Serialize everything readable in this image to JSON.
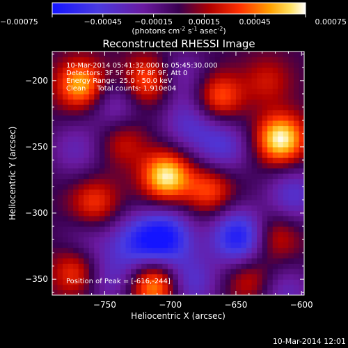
{
  "colorbar": {
    "ticks": [
      "-0.00075",
      "-0.00045",
      "-0.00015",
      "0.00015",
      "0.00045",
      "0.00075"
    ],
    "unit_main": "(photons cm",
    "unit_exp1": "-2",
    "unit_mid": " s",
    "unit_exp2": "-1",
    "unit_tail": " asec",
    "unit_exp3": "-2",
    "unit_close": ")"
  },
  "annotations": {
    "time_range": "10-Mar-2014 05:41:32.000 to 05:45:30.000",
    "detectors": "Detectors: 3F 5F 6F 7F 8F 9F, Att 0",
    "energy": "Energy Range: 25.0 - 50.0 keV",
    "clean": "Clean     Total counts: 1.910e04",
    "peak": "Position of Peak = [-616,-244]"
  },
  "footer_timestamp": "10-Mar-2014 12:01",
  "chart_data": {
    "type": "heatmap",
    "title": "Reconstructed RHESSI Image",
    "xlabel": "Heliocentric X (arcsec)",
    "ylabel": "Heliocentric Y (arcsec)",
    "xlim": [
      -790,
      -598
    ],
    "ylim": [
      -362,
      -178
    ],
    "xticks": [
      -750,
      -700,
      -650,
      -600
    ],
    "yticks": [
      -200,
      -250,
      -300,
      -350
    ],
    "xtick_labels": [
      "−750",
      "−700",
      "−650",
      "−600"
    ],
    "ytick_labels": [
      "−200",
      "−250",
      "−300",
      "−350"
    ],
    "colorscale": "rainbow-blue-to-white",
    "color_range": [
      -0.00075,
      0.00075
    ],
    "peak": {
      "x": -616,
      "y": -244
    },
    "sources": [
      {
        "x": -616,
        "y": -244,
        "value": 0.00075
      },
      {
        "x": -703,
        "y": -272,
        "value": 0.00072
      },
      {
        "x": -768,
        "y": -203,
        "value": 0.0006
      },
      {
        "x": -718,
        "y": -200,
        "value": 0.00045
      },
      {
        "x": -663,
        "y": -212,
        "value": 0.00045
      },
      {
        "x": -712,
        "y": -354,
        "value": 0.0006
      },
      {
        "x": -758,
        "y": -292,
        "value": 0.00036
      },
      {
        "x": -670,
        "y": -282,
        "value": 0.0004
      },
      {
        "x": -620,
        "y": -318,
        "value": 0.0003
      },
      {
        "x": -736,
        "y": -246,
        "value": 0.00026
      },
      {
        "x": -772,
        "y": -344,
        "value": 0.0004
      },
      {
        "x": -640,
        "y": -350,
        "value": 0.00028
      },
      {
        "x": -626,
        "y": -200,
        "value": 0.00024
      }
    ],
    "sinks": [
      {
        "x": -703,
        "y": -318,
        "value": -0.00065
      },
      {
        "x": -648,
        "y": -318,
        "value": -0.0007
      },
      {
        "x": -726,
        "y": -322,
        "value": -0.00045
      },
      {
        "x": -660,
        "y": -250,
        "value": -0.0004
      },
      {
        "x": -742,
        "y": -218,
        "value": -0.0003
      },
      {
        "x": -686,
        "y": -232,
        "value": -0.00035
      },
      {
        "x": -772,
        "y": -252,
        "value": -0.00028
      },
      {
        "x": -606,
        "y": -286,
        "value": -0.0004
      },
      {
        "x": -684,
        "y": -352,
        "value": -0.0004
      },
      {
        "x": -612,
        "y": -360,
        "value": -0.0003
      },
      {
        "x": -746,
        "y": -350,
        "value": -0.0003
      },
      {
        "x": -690,
        "y": -196,
        "value": -0.00025
      },
      {
        "x": -764,
        "y": -322,
        "value": -0.0002
      }
    ]
  }
}
